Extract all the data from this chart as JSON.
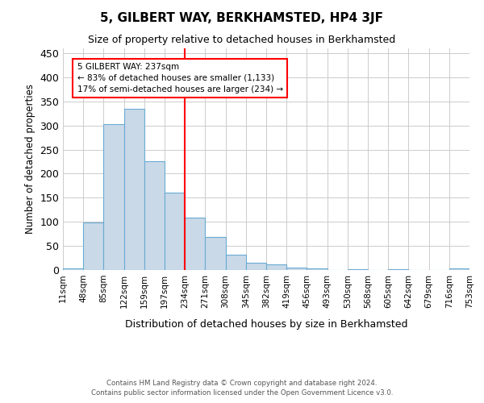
{
  "title": "5, GILBERT WAY, BERKHAMSTED, HP4 3JF",
  "subtitle": "Size of property relative to detached houses in Berkhamsted",
  "xlabel": "Distribution of detached houses by size in Berkhamsted",
  "ylabel": "Number of detached properties",
  "footer1": "Contains HM Land Registry data © Crown copyright and database right 2024.",
  "footer2": "Contains public sector information licensed under the Open Government Licence v3.0.",
  "bin_labels": [
    "11sqm",
    "48sqm",
    "85sqm",
    "122sqm",
    "159sqm",
    "197sqm",
    "234sqm",
    "271sqm",
    "308sqm",
    "345sqm",
    "382sqm",
    "419sqm",
    "456sqm",
    "493sqm",
    "530sqm",
    "568sqm",
    "605sqm",
    "642sqm",
    "679sqm",
    "716sqm",
    "753sqm"
  ],
  "bar_heights": [
    4,
    99,
    303,
    335,
    225,
    160,
    108,
    68,
    32,
    15,
    12,
    5,
    3,
    0,
    2,
    0,
    2,
    0,
    0,
    3
  ],
  "bar_color": "#c9d9e8",
  "bar_edge_color": "#6aabd2",
  "vline_bin_index": 6,
  "vline_color": "red",
  "annotation_line1": "5 GILBERT WAY: 237sqm",
  "annotation_line2": "← 83% of detached houses are smaller (1,133)",
  "annotation_line3": "17% of semi-detached houses are larger (234) →",
  "ylim": [
    0,
    460
  ],
  "yticks": [
    0,
    50,
    100,
    150,
    200,
    250,
    300,
    350,
    400,
    450
  ],
  "background_color": "#ffffff",
  "grid_color": "#cccccc"
}
